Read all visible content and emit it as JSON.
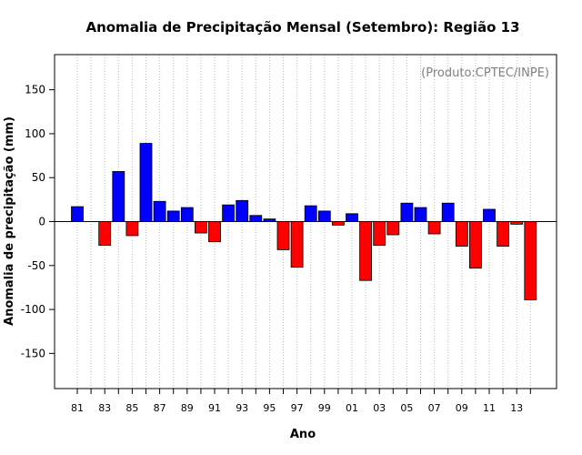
{
  "chart_data": {
    "type": "bar",
    "title": "Anomalia de Precipitação Mensal (Setembro): Região 13",
    "xlabel": "Ano",
    "ylabel": "Anomalia de precipitação (mm)",
    "credit": "(Produto:CPTEC/INPE)",
    "ylim": [
      -190,
      190
    ],
    "yticks": [
      -150,
      -100,
      -50,
      0,
      50,
      100,
      150
    ],
    "grid": "vertical-dotted",
    "positive_color": "#0000ff",
    "negative_color": "#ff0000",
    "categories": [
      "81",
      "82",
      "83",
      "84",
      "85",
      "86",
      "87",
      "88",
      "89",
      "90",
      "91",
      "92",
      "93",
      "94",
      "95",
      "96",
      "97",
      "98",
      "99",
      "00",
      "01",
      "02",
      "03",
      "04",
      "05",
      "06",
      "07",
      "08",
      "09",
      "10",
      "11",
      "12",
      "13",
      "14"
    ],
    "x_tick_labels": [
      "81",
      "83",
      "85",
      "87",
      "89",
      "91",
      "93",
      "95",
      "97",
      "99",
      "01",
      "03",
      "05",
      "07",
      "09",
      "11",
      "13"
    ],
    "values": [
      17,
      0,
      -27,
      57,
      -16,
      89,
      23,
      12,
      16,
      -13,
      -23,
      19,
      24,
      7,
      3,
      -32,
      -52,
      18,
      12,
      -4,
      9,
      -67,
      -27,
      -15,
      21,
      16,
      -14,
      21,
      -28,
      -53,
      14,
      -28,
      -3,
      -89
    ]
  }
}
